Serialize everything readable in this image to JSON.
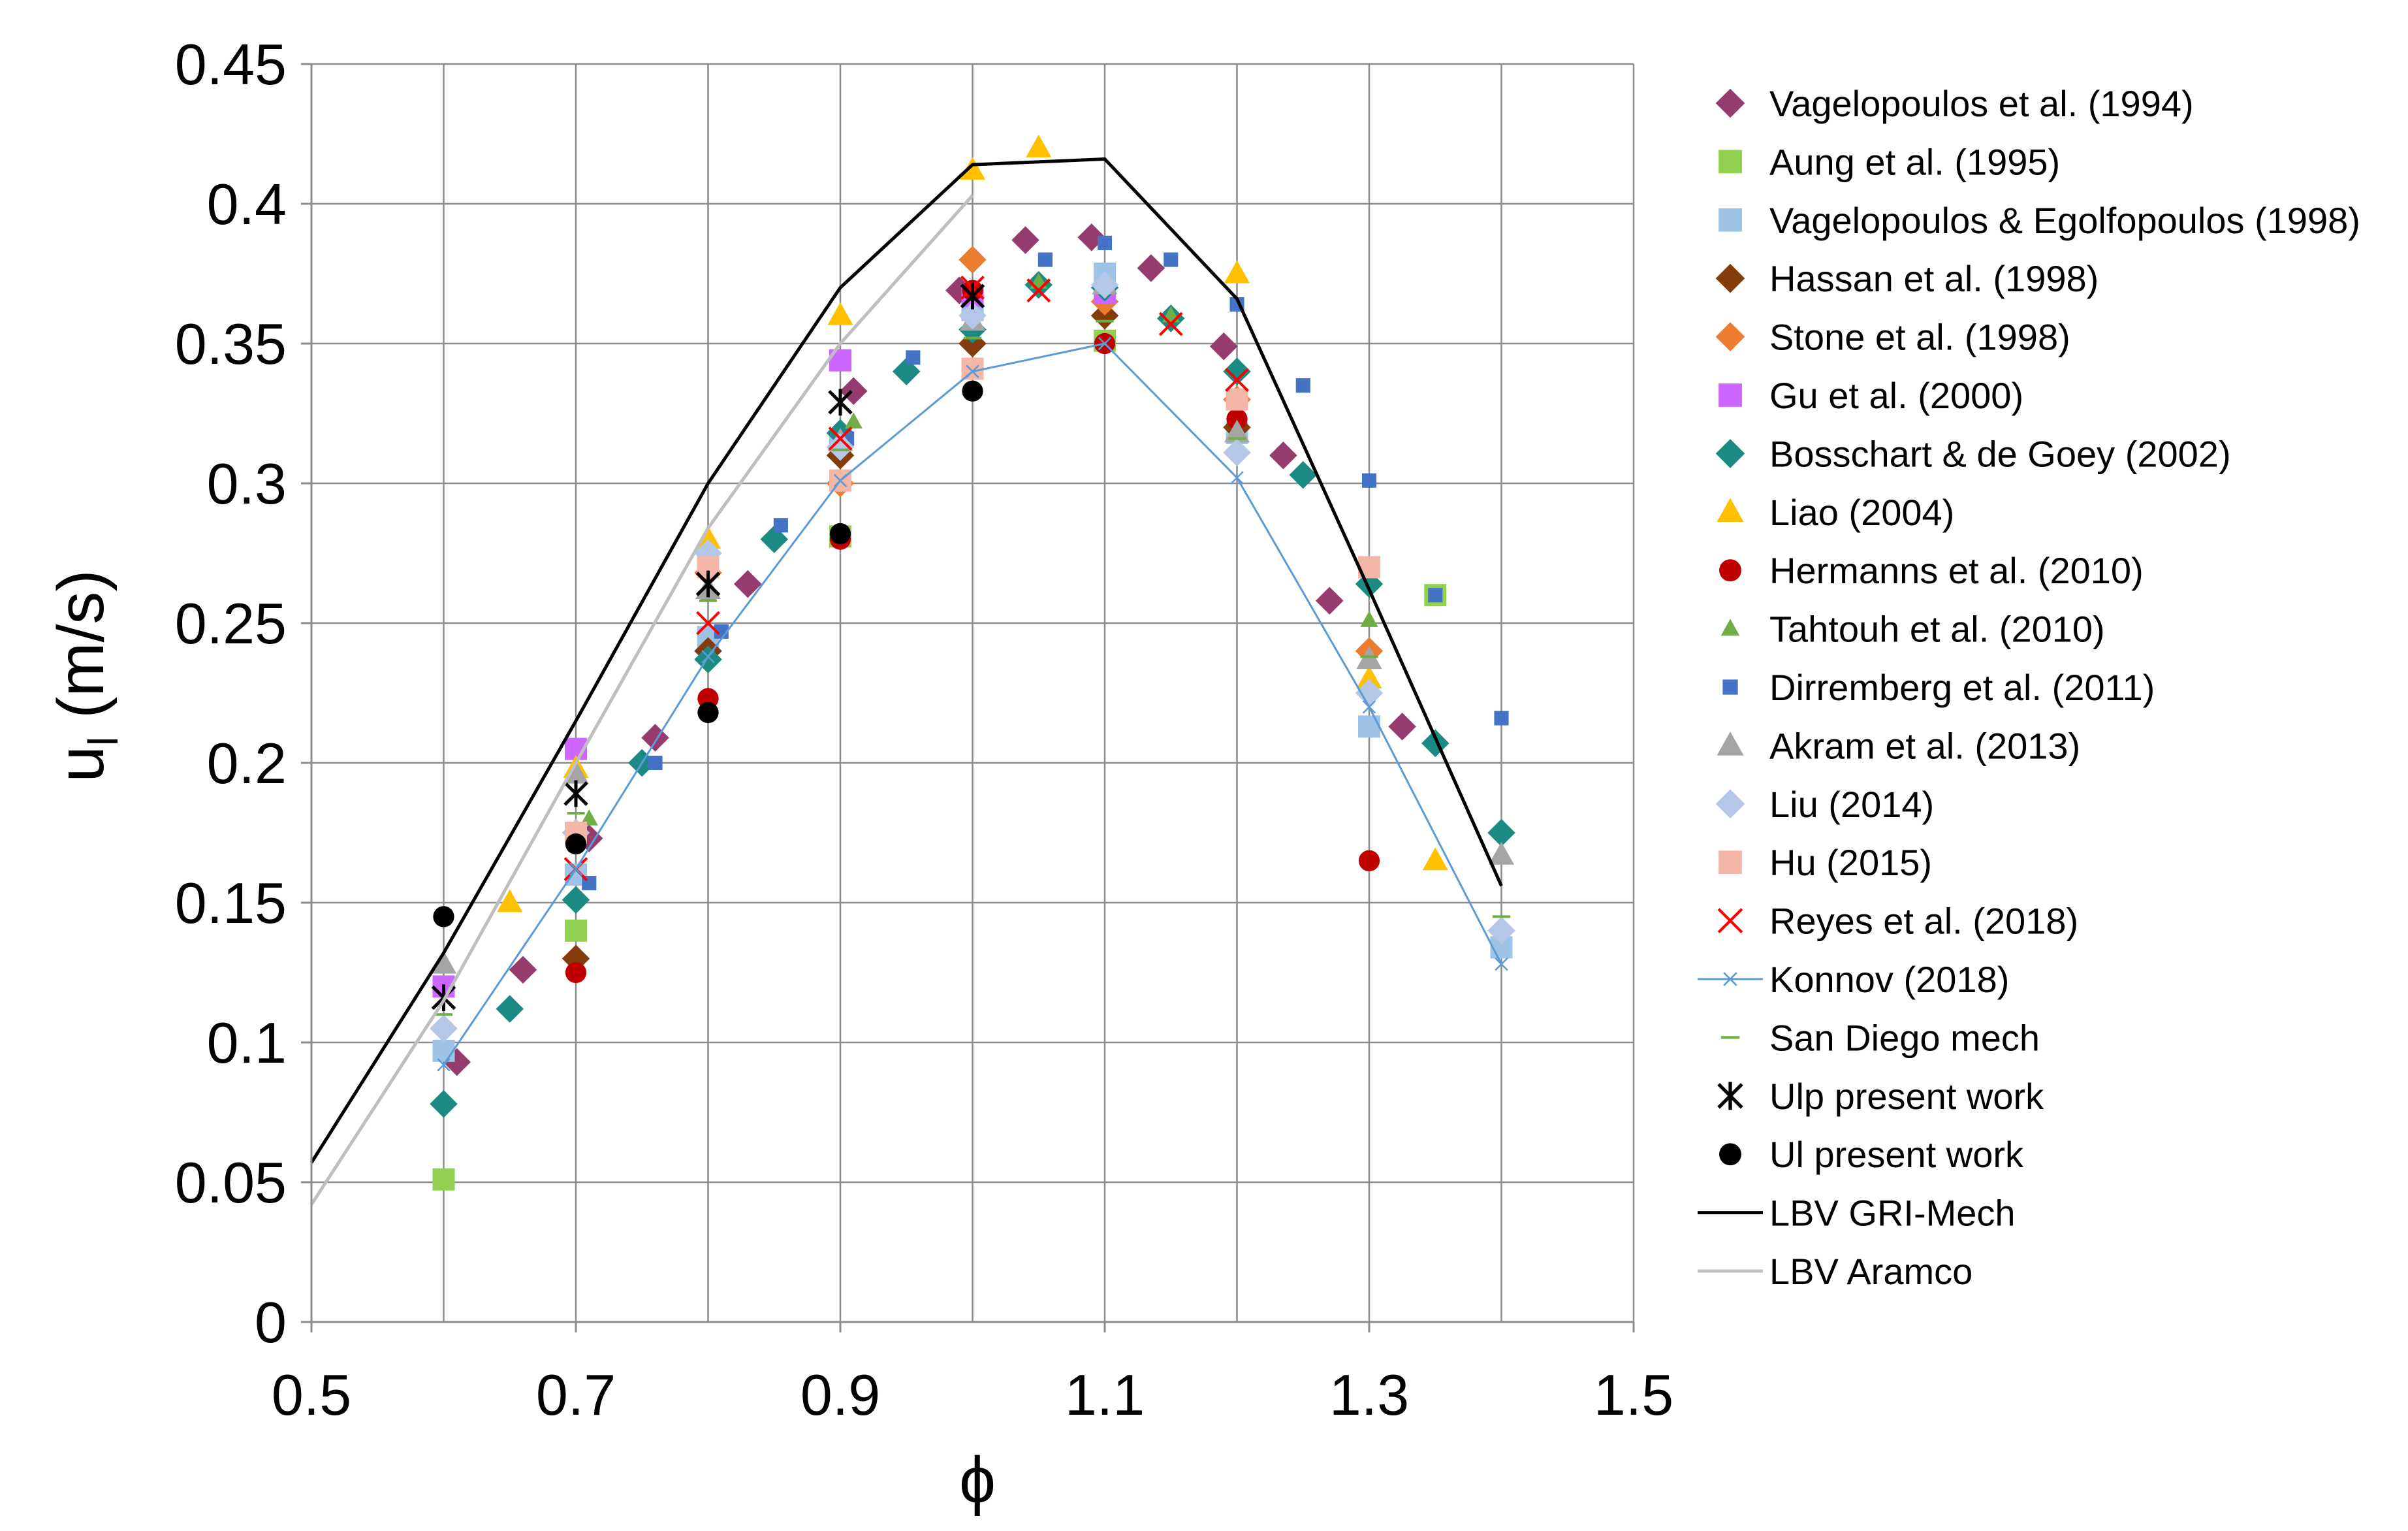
{
  "chart_data": {
    "type": "scatter",
    "xlabel": "ϕ",
    "ylabel_main": "u",
    "ylabel_sub": "l",
    "ylabel_rest": " (m/s)",
    "xlim": [
      0.5,
      1.5
    ],
    "ylim": [
      0,
      0.45
    ],
    "x_ticks": [
      "0.5",
      "0.7",
      "0.9",
      "1.1",
      "1.3",
      "1.5"
    ],
    "y_ticks": [
      "0",
      "0.05",
      "0.1",
      "0.15",
      "0.2",
      "0.25",
      "0.3",
      "0.35",
      "0.4",
      "0.45"
    ],
    "grid": "vertical and horizontal",
    "legend_position": "right",
    "series": [
      {
        "name": "Vagelopoulos et al. (1994)",
        "marker": "diamond",
        "color": "#953b6e",
        "x": [
          0.61,
          0.66,
          0.71,
          0.76,
          0.83,
          0.91,
          0.99,
          1.04,
          1.09,
          1.135,
          1.19,
          1.235,
          1.27,
          1.325
        ],
        "y": [
          0.093,
          0.126,
          0.173,
          0.209,
          0.264,
          0.333,
          0.369,
          0.387,
          0.388,
          0.377,
          0.349,
          0.31,
          0.258,
          0.213
        ]
      },
      {
        "name": "Aung et al. (1995)",
        "marker": "square",
        "color": "#92d050",
        "x": [
          0.6,
          0.7,
          0.9,
          1.1,
          1.35
        ],
        "y": [
          0.051,
          0.14,
          0.281,
          0.351,
          0.26
        ]
      },
      {
        "name": "Vagelopoulos & Egolfopoulos (1998)",
        "marker": "square",
        "color": "#9dc3e6",
        "x": [
          0.6,
          0.7,
          0.8,
          0.9,
          1.0,
          1.1,
          1.2,
          1.3,
          1.4
        ],
        "y": [
          0.097,
          0.16,
          0.245,
          0.315,
          0.362,
          0.375,
          0.318,
          0.213,
          0.134
        ]
      },
      {
        "name": "Hassan et al. (1998)",
        "marker": "diamond",
        "color": "#843c0c",
        "x": [
          0.7,
          0.8,
          0.9,
          1.0,
          1.1,
          1.2
        ],
        "y": [
          0.13,
          0.24,
          0.31,
          0.35,
          0.36,
          0.32
        ]
      },
      {
        "name": "Stone et al. (1998)",
        "marker": "diamond",
        "color": "#ed7d31",
        "x": [
          0.7,
          0.8,
          0.9,
          1.0,
          1.1,
          1.2,
          1.3
        ],
        "y": [
          0.175,
          0.268,
          0.3,
          0.38,
          0.365,
          0.33,
          0.24
        ]
      },
      {
        "name": "Gu et al. (2000)",
        "marker": "square",
        "color": "#cc66ff",
        "x": [
          0.6,
          0.7,
          0.9,
          1.0,
          1.1
        ],
        "y": [
          0.12,
          0.205,
          0.344,
          0.367,
          0.368
        ]
      },
      {
        "name": "Bosschart & de Goey (2002)",
        "marker": "diamond",
        "color": "#1b8a83",
        "x": [
          0.6,
          0.65,
          0.7,
          0.75,
          0.8,
          0.85,
          0.9,
          0.95,
          1.0,
          1.05,
          1.1,
          1.15,
          1.2,
          1.25,
          1.3,
          1.35,
          1.4
        ],
        "y": [
          0.078,
          0.112,
          0.151,
          0.2,
          0.237,
          0.28,
          0.318,
          0.34,
          0.355,
          0.371,
          0.37,
          0.359,
          0.34,
          0.303,
          0.264,
          0.207,
          0.175
        ]
      },
      {
        "name": "Liao (2004)",
        "marker": "triangle",
        "color": "#ffc000",
        "x": [
          0.65,
          0.7,
          0.8,
          0.9,
          1.0,
          1.05,
          1.2,
          1.3,
          1.35
        ],
        "y": [
          0.15,
          0.198,
          0.28,
          0.36,
          0.412,
          0.42,
          0.375,
          0.23,
          0.165
        ]
      },
      {
        "name": "Hermanns et al. (2010)",
        "marker": "circle",
        "color": "#c00000",
        "x": [
          0.7,
          0.8,
          0.9,
          1.0,
          1.1,
          1.2,
          1.3
        ],
        "y": [
          0.125,
          0.223,
          0.28,
          0.369,
          0.35,
          0.323,
          0.165
        ]
      },
      {
        "name": "Tahtouh et al. (2010)",
        "marker": "triangle-small",
        "color": "#70ad47",
        "x": [
          0.7,
          0.71,
          0.8,
          0.91,
          1.05,
          1.15,
          1.3
        ],
        "y": [
          0.175,
          0.18,
          0.26,
          0.322,
          0.372,
          0.36,
          0.251
        ]
      },
      {
        "name": "Dirremberg et al. (2011)",
        "marker": "square-small",
        "color": "#4472c4",
        "x": [
          0.71,
          0.76,
          0.81,
          0.855,
          0.905,
          0.955,
          1.0,
          1.055,
          1.1,
          1.15,
          1.2,
          1.25,
          1.3,
          1.35,
          1.4
        ],
        "y": [
          0.157,
          0.2,
          0.247,
          0.285,
          0.316,
          0.345,
          0.36,
          0.38,
          0.386,
          0.38,
          0.364,
          0.335,
          0.301,
          0.26,
          0.216
        ]
      },
      {
        "name": "Akram et al. (2013)",
        "marker": "triangle",
        "color": "#a5a5a5",
        "x": [
          0.6,
          0.7,
          0.8,
          0.9,
          1.0,
          1.1,
          1.2,
          1.3,
          1.4
        ],
        "y": [
          0.128,
          0.196,
          0.262,
          0.315,
          0.358,
          0.371,
          0.318,
          0.237,
          0.167
        ]
      },
      {
        "name": "Liu (2014)",
        "marker": "diamond",
        "color": "#b4c7e7",
        "x": [
          0.6,
          0.7,
          0.8,
          0.9,
          1.0,
          1.1,
          1.2,
          1.3,
          1.4
        ],
        "y": [
          0.105,
          0.175,
          0.275,
          0.313,
          0.36,
          0.371,
          0.311,
          0.225,
          0.14
        ]
      },
      {
        "name": "Hu (2015)",
        "marker": "square",
        "color": "#f4b6a6",
        "x": [
          0.7,
          0.8,
          0.9,
          1.0,
          1.2,
          1.3
        ],
        "y": [
          0.175,
          0.27,
          0.301,
          0.341,
          0.33,
          0.27
        ]
      },
      {
        "name": "Reyes et al. (2018)",
        "marker": "x",
        "color": "#ff0000",
        "x": [
          0.7,
          0.8,
          0.9,
          1.0,
          1.05,
          1.15,
          1.2
        ],
        "y": [
          0.162,
          0.25,
          0.316,
          0.37,
          0.369,
          0.357,
          0.337
        ]
      },
      {
        "name": "Konnov (2018)",
        "marker": "x-line",
        "color": "#5b9bd5",
        "x": [
          0.6,
          0.7,
          0.8,
          0.9,
          1.0,
          1.1,
          1.2,
          1.3,
          1.4
        ],
        "y": [
          0.092,
          0.162,
          0.238,
          0.301,
          0.34,
          0.35,
          0.302,
          0.22,
          0.128
        ]
      },
      {
        "name": "San Diego mech",
        "marker": "dash",
        "color": "#70ad47",
        "x": [
          0.6,
          0.7,
          0.8,
          0.9,
          1.0,
          1.1,
          1.2,
          1.3,
          1.4
        ],
        "y": [
          0.11,
          0.182,
          0.258,
          0.312,
          0.352,
          0.358,
          0.316,
          0.238,
          0.145
        ]
      },
      {
        "name": "Ulp present work",
        "marker": "star",
        "color": "#000000",
        "x": [
          0.6,
          0.7,
          0.8,
          0.9,
          1.0
        ],
        "y": [
          0.116,
          0.189,
          0.264,
          0.329,
          0.367
        ]
      },
      {
        "name": "Ul present work",
        "marker": "circle",
        "color": "#000000",
        "x": [
          0.6,
          0.7,
          0.8,
          0.9,
          1.0
        ],
        "y": [
          0.145,
          0.171,
          0.218,
          0.282,
          0.333
        ]
      },
      {
        "name": "LBV GRI-Mech",
        "marker": "line",
        "color": "#000000",
        "x": [
          0.5,
          0.6,
          0.7,
          0.8,
          0.9,
          1.0,
          1.1,
          1.2,
          1.3,
          1.4
        ],
        "y": [
          0.057,
          0.132,
          0.215,
          0.3,
          0.37,
          0.414,
          0.416,
          0.366,
          0.262,
          0.156
        ]
      },
      {
        "name": "LBV Aramco",
        "marker": "line",
        "color": "#bfbfbf",
        "x": [
          0.5,
          0.6,
          0.7,
          0.8,
          0.9,
          1.0
        ],
        "y": [
          0.042,
          0.115,
          0.2,
          0.284,
          0.35,
          0.403
        ]
      }
    ]
  }
}
